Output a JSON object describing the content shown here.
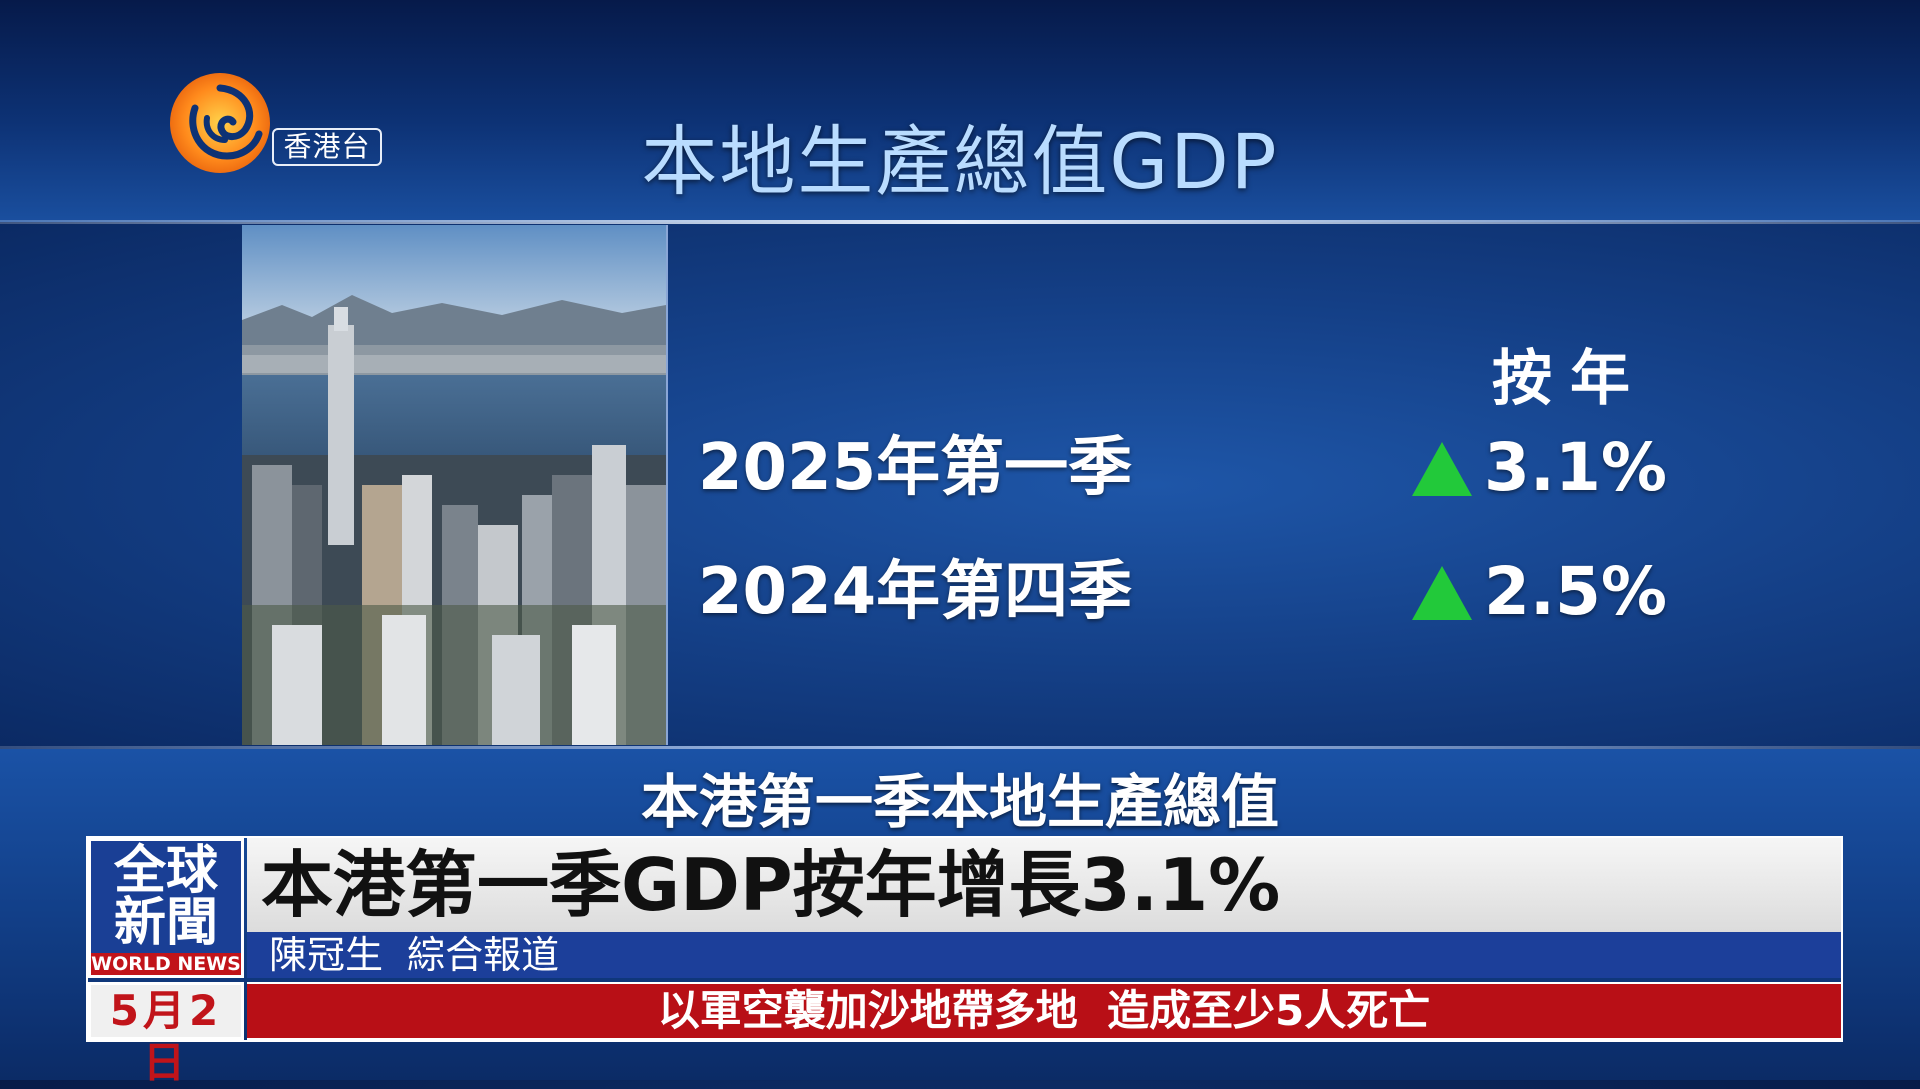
{
  "station": {
    "logo_icon": "phoenix-logo-icon",
    "label": "香港台"
  },
  "headline": "本地生產總值GDP",
  "table": {
    "column_header": "按年",
    "rows": [
      {
        "period": "2025年第一季",
        "direction": "up",
        "value": "3.1%"
      },
      {
        "period": "2024年第四季",
        "direction": "up",
        "value": "2.5%"
      }
    ],
    "arrow_color": "#22c93a"
  },
  "caption": "本港第一季本地生產總值",
  "lower_third": {
    "brand_zh": "全球新聞",
    "brand_en": "WORLD NEWS",
    "title": "本港第一季GDP按年增長3.1%",
    "reporter": "陳冠生  綜合報道",
    "date": "5月2日",
    "ticker": "以軍空襲加沙地帶多地  造成至少5人死亡",
    "colors": {
      "brand_blue": "#1c3f9a",
      "ticker_red": "#b80f16"
    }
  }
}
